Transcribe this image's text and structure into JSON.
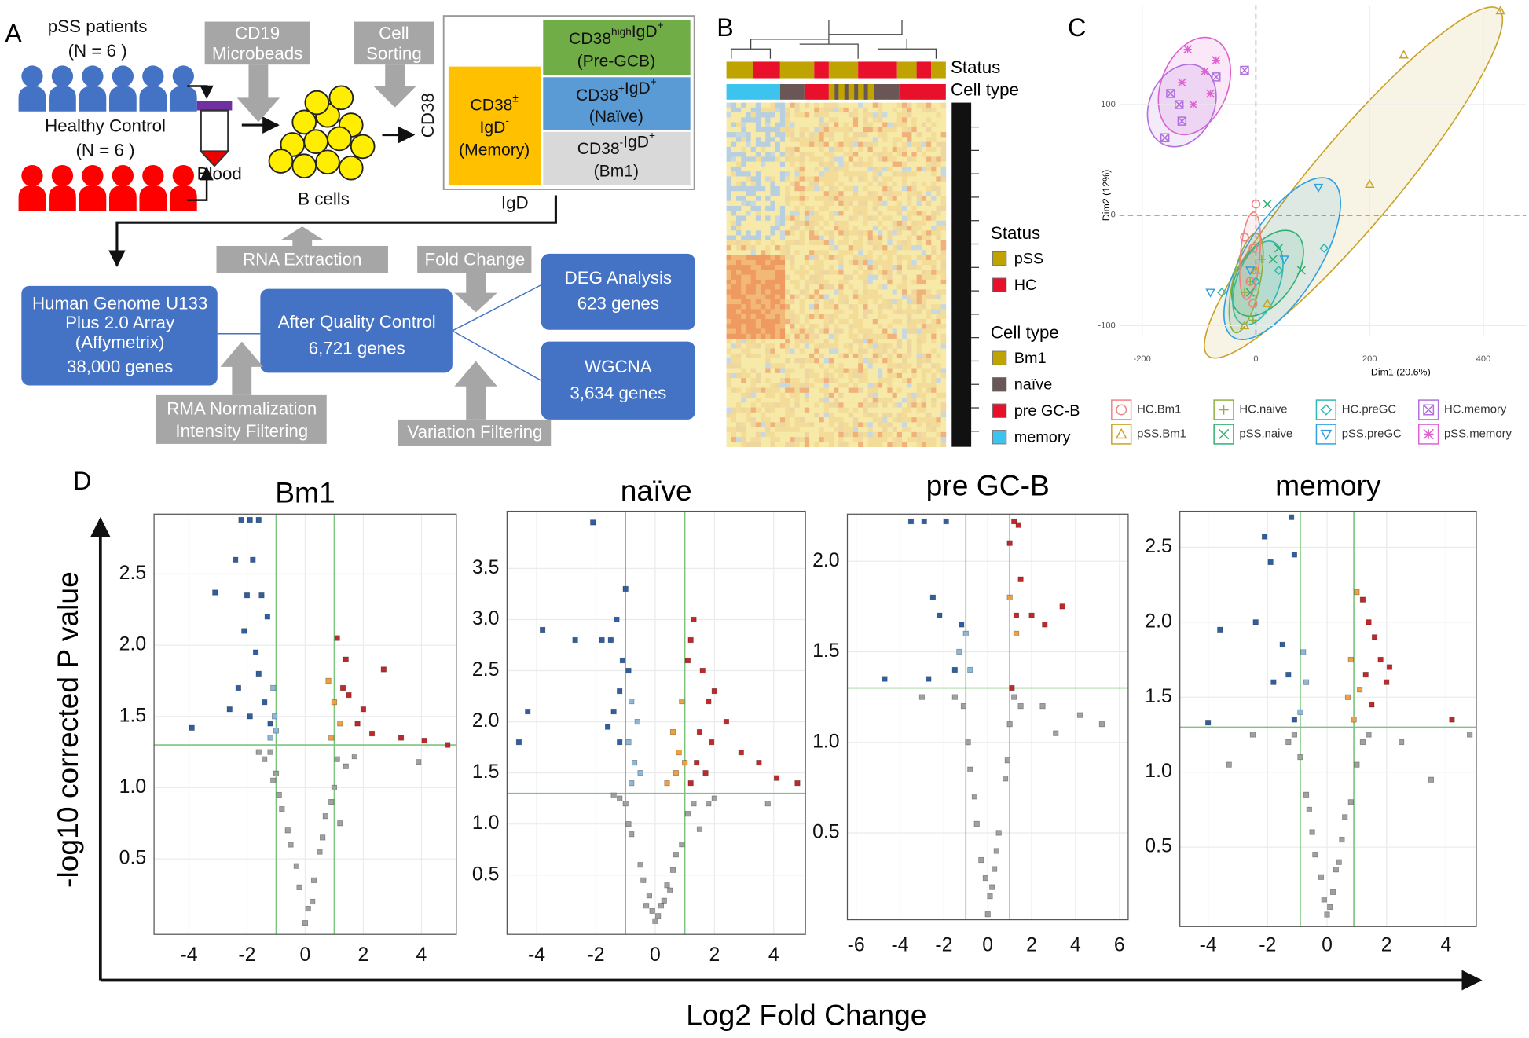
{
  "panels": [
    "A",
    "B",
    "C",
    "D"
  ],
  "diagram": {
    "pss": [
      "pSS patients",
      "(N = 6 )"
    ],
    "hc": [
      "Healthy Control",
      "(N = 6 )"
    ],
    "blood": "Blood",
    "microbeads": [
      "CD19",
      "Microbeads"
    ],
    "sorting": [
      "Cell",
      "Sorting"
    ],
    "b_cells": "B cells",
    "y_axis": "CD38",
    "x_axis": "IgD",
    "gates": [
      {
        "color": "#ffc000",
        "lines": [
          [
            {
              "text": "CD38",
              "sup": "±"
            }
          ],
          [
            {
              "text": "IgD",
              "sup": "-"
            }
          ],
          [
            {
              "text": "(Memory)"
            }
          ]
        ]
      },
      {
        "color": "#70ad47",
        "lines": [
          [
            {
              "text": "CD38",
              "sup": "high"
            },
            {
              "text": "IgD",
              "sup": "+"
            }
          ],
          [
            {
              "text": "(Pre-GCB)"
            }
          ]
        ]
      },
      {
        "color": "#5b9bd5",
        "lines": [
          [
            {
              "text": "CD38",
              "sup": "+"
            },
            {
              "text": "IgD",
              "sup": "+"
            }
          ],
          [
            {
              "text": "(Naïve)"
            }
          ]
        ]
      },
      {
        "color": "#d9d9d9",
        "lines": [
          [
            {
              "text": "CD38",
              "sup": "-"
            },
            {
              "text": "IgD",
              "sup": "+"
            }
          ],
          [
            {
              "text": "(Bm1)"
            }
          ]
        ]
      }
    ],
    "rna": "RNA Extraction",
    "fold": "Fold Change",
    "array": [
      "Human Genome U133",
      "Plus 2.0 Array",
      "(Affymetrix)",
      "38,000 genes"
    ],
    "qc": [
      "After Quality Control",
      "6,721 genes"
    ],
    "deg": [
      "DEG Analysis",
      "623 genes"
    ],
    "wgcna": [
      "WGCNA",
      "3,634 genes"
    ],
    "rma": [
      "RMA Normalization",
      "Intensity Filtering"
    ],
    "variation": "Variation Filtering"
  },
  "heatmap": {
    "status_label": "Status",
    "cell_type_label": "Cell type",
    "legend": [
      {
        "title": "Status",
        "items": [
          {
            "name": "pSS",
            "color": "#bfa300"
          },
          {
            "name": "HC",
            "color": "#e8102a"
          }
        ]
      },
      {
        "title": "Cell type",
        "items": [
          {
            "name": "Bm1",
            "color": "#bfa300"
          },
          {
            "name": "naïve",
            "color": "#6b5656"
          },
          {
            "name": "pre GC-B",
            "color": "#e8102a"
          },
          {
            "name": "memory",
            "color": "#3cc4ee"
          }
        ]
      }
    ]
  },
  "volcano_axes": {
    "ylabel": "-log10 corrected P value",
    "xlabel": "Log2 Fold Change"
  },
  "chart_data": [
    {
      "type": "scatter",
      "xlabel": "Dim1 (20.6%)",
      "ylabel": "Dim2 (12%)",
      "xlim": [
        -240,
        475
      ],
      "ylim": [
        -110,
        190
      ],
      "xticks": [
        -200,
        0,
        200,
        400
      ],
      "yticks": [
        -100,
        0,
        100
      ],
      "grid": true,
      "zero_lines": true,
      "series": [
        {
          "name": "HC.Bm1",
          "color": "#f08080",
          "shape": "circle",
          "x": [
            -5,
            -10,
            0,
            -20,
            -5
          ],
          "values": [
            -30,
            -60,
            10,
            -20,
            -80
          ]
        },
        {
          "name": "pSS.Bm1",
          "color": "#c9a227",
          "shape": "triangle",
          "x": [
            260,
            430,
            200,
            -20,
            20,
            0
          ],
          "values": [
            145,
            185,
            28,
            -100,
            -80,
            -50
          ]
        },
        {
          "name": "HC.naive",
          "color": "#8db040",
          "shape": "plus",
          "x": [
            -5,
            -20,
            10,
            -10
          ],
          "values": [
            -95,
            -70,
            -40,
            -60
          ]
        },
        {
          "name": "pSS.naive",
          "color": "#30b070",
          "shape": "cross",
          "x": [
            80,
            30,
            40,
            -10,
            20
          ],
          "values": [
            -50,
            -40,
            -30,
            -70,
            10
          ]
        },
        {
          "name": "HC.preGC",
          "color": "#2fb8b0",
          "shape": "diamond",
          "x": [
            120,
            -60,
            40,
            0
          ],
          "values": [
            -30,
            -70,
            -50,
            -60
          ]
        },
        {
          "name": "pSS.preGC",
          "color": "#2f9fe0",
          "shape": "triangle-down",
          "x": [
            -80,
            110,
            50,
            -10
          ],
          "values": [
            -70,
            25,
            -40,
            -50
          ]
        },
        {
          "name": "HC.memory",
          "color": "#b070e0",
          "shape": "boxed-cross",
          "x": [
            -20,
            -150,
            -130,
            -160,
            -135,
            -70
          ],
          "values": [
            131,
            110,
            85,
            70,
            100,
            125
          ]
        },
        {
          "name": "pSS.memory",
          "color": "#e060d0",
          "shape": "asterisk",
          "x": [
            -120,
            -90,
            -70,
            -130,
            -110,
            -80
          ],
          "values": [
            150,
            130,
            140,
            120,
            100,
            110
          ]
        }
      ]
    },
    {
      "type": "scatter",
      "title": "Bm1",
      "frame": true,
      "grid": true,
      "vlines": [
        -1,
        1
      ],
      "hline": 1.3,
      "xlim": [
        -5.2,
        5.2
      ],
      "ylim": [
        -0.03,
        2.92
      ],
      "xticks": [
        -4,
        -2,
        0,
        2,
        4
      ],
      "yticks": [
        0.5,
        {
          "value": 1,
          "label": "1.0"
        },
        1.5,
        {
          "value": 2,
          "label": "2.0"
        },
        2.5
      ],
      "series": [
        {
          "color": "#a0a0a0",
          "shape": "square",
          "x": [
            0.0,
            0.1,
            -0.2,
            0.3,
            -0.5,
            0.5,
            -0.8,
            0.7,
            -1.0,
            1.0,
            -1.2,
            1.1,
            -0.6,
            0.6,
            -1.4,
            1.4,
            -0.9,
            0.9,
            -1.6,
            1.7,
            -0.3,
            0.25,
            -1.1,
            1.2,
            3.9
          ],
          "values": [
            0.05,
            0.15,
            0.3,
            0.35,
            0.6,
            0.55,
            0.85,
            0.8,
            1.1,
            1.0,
            1.25,
            1.2,
            0.7,
            0.65,
            1.2,
            1.15,
            0.95,
            0.9,
            1.25,
            1.22,
            0.45,
            0.2,
            1.05,
            0.75,
            1.18
          ]
        },
        {
          "color": "#2f5f9f",
          "shape": "square",
          "x": [
            -2.2,
            -1.9,
            -1.6,
            -2.4,
            -1.8,
            -1.5,
            -2.0,
            -1.3,
            -2.1,
            -1.7,
            -3.1,
            -3.9,
            -1.6,
            -2.3,
            -1.4,
            -1.9,
            -1.2,
            -2.6
          ],
          "values": [
            2.88,
            2.88,
            2.88,
            2.6,
            2.6,
            2.35,
            2.35,
            2.2,
            2.1,
            1.95,
            2.37,
            1.42,
            1.8,
            1.7,
            1.6,
            1.5,
            1.45,
            1.55
          ]
        },
        {
          "color": "#8cb8d8",
          "shape": "square",
          "x": [
            -1.1,
            -1.05,
            -1.2,
            -1.0
          ],
          "values": [
            1.7,
            1.5,
            1.35,
            1.4
          ]
        },
        {
          "color": "#f0a040",
          "shape": "square",
          "x": [
            0.8,
            1.0,
            1.2,
            0.9
          ],
          "values": [
            1.75,
            1.6,
            1.45,
            1.35
          ]
        },
        {
          "color": "#c0282a",
          "shape": "square",
          "x": [
            1.1,
            1.3,
            1.5,
            2.0,
            2.7,
            1.8,
            2.3,
            3.3,
            4.1,
            4.9,
            1.4
          ],
          "values": [
            2.05,
            1.7,
            1.65,
            1.55,
            1.83,
            1.45,
            1.38,
            1.35,
            1.33,
            1.3,
            1.9
          ]
        }
      ]
    },
    {
      "type": "scatter",
      "title": "naïve",
      "frame": true,
      "grid": true,
      "vlines": [
        -1,
        1
      ],
      "hline": 1.3,
      "xlim": [
        -5,
        5.07
      ],
      "ylim": [
        -0.08,
        4.06
      ],
      "xticks": [
        -4,
        -2,
        0,
        2,
        4
      ],
      "yticks": [
        0.5,
        {
          "value": 1,
          "label": "1.0"
        },
        1.5,
        {
          "value": 2,
          "label": "2.0"
        },
        2.5,
        {
          "value": 3,
          "label": "3.0"
        },
        3.5
      ],
      "series": [
        {
          "color": "#a0a0a0",
          "shape": "square",
          "x": [
            0.0,
            0.2,
            -0.2,
            0.4,
            -0.5,
            0.6,
            -0.8,
            0.9,
            -1.0,
            1.1,
            -0.4,
            0.5,
            -0.9,
            0.7,
            -1.2,
            1.3,
            0.1,
            -0.1,
            0.3,
            -0.3,
            1.8,
            2.0,
            -1.4,
            1.5,
            3.8
          ],
          "values": [
            0.05,
            0.2,
            0.3,
            0.4,
            0.6,
            0.55,
            0.9,
            0.8,
            1.2,
            1.1,
            0.45,
            0.35,
            1.0,
            0.7,
            1.25,
            1.2,
            0.1,
            0.15,
            0.25,
            0.2,
            1.2,
            1.25,
            1.28,
            0.95,
            1.2
          ]
        },
        {
          "color": "#2f5f9f",
          "shape": "square",
          "x": [
            -2.1,
            -1.0,
            -1.3,
            -1.5,
            -1.1,
            -3.8,
            -2.7,
            -1.8,
            -4.3,
            -4.6,
            -1.2,
            -1.4,
            -0.9,
            -1.6,
            -1.2
          ],
          "values": [
            3.95,
            3.3,
            3.0,
            2.8,
            2.6,
            2.9,
            2.8,
            2.8,
            2.1,
            1.8,
            2.3,
            2.1,
            2.5,
            1.95,
            1.8
          ]
        },
        {
          "color": "#8cb8d8",
          "shape": "square",
          "x": [
            -0.8,
            -0.6,
            -0.9,
            -0.7,
            -0.5,
            -0.8
          ],
          "values": [
            2.2,
            2.0,
            1.8,
            1.6,
            1.5,
            1.4
          ]
        },
        {
          "color": "#f0a040",
          "shape": "square",
          "x": [
            0.9,
            0.6,
            0.8,
            0.4,
            1.0,
            0.7
          ],
          "values": [
            2.2,
            1.9,
            1.7,
            1.4,
            1.6,
            1.5
          ]
        },
        {
          "color": "#c0282a",
          "shape": "square",
          "x": [
            1.3,
            1.2,
            1.6,
            1.8,
            2.0,
            1.1,
            1.5,
            2.4,
            2.9,
            3.5,
            4.1,
            4.8,
            1.9,
            1.4,
            1.7,
            1.2
          ],
          "values": [
            3.0,
            2.8,
            2.5,
            2.2,
            2.3,
            2.6,
            1.9,
            2.0,
            1.7,
            1.6,
            1.45,
            1.4,
            1.8,
            1.6,
            1.5,
            1.4
          ]
        }
      ]
    },
    {
      "type": "scatter",
      "title": "pre GC-B",
      "frame": true,
      "grid": true,
      "vlines": [
        -1,
        1
      ],
      "hline": 1.3,
      "xlim": [
        -6.4,
        6.4
      ],
      "ylim": [
        0.02,
        2.26
      ],
      "xticks": [
        -6,
        -4,
        -2,
        0,
        2,
        4,
        6
      ],
      "yticks": [
        0.5,
        {
          "value": 1,
          "label": "1.0"
        },
        1.5,
        {
          "value": 2,
          "label": "2.0"
        }
      ],
      "series": [
        {
          "color": "#a0a0a0",
          "shape": "square",
          "x": [
            0.0,
            0.2,
            -0.3,
            0.5,
            -0.6,
            0.8,
            -0.9,
            1.0,
            -1.1,
            1.2,
            0.1,
            -0.1,
            0.4,
            -0.5,
            1.5,
            -1.5,
            2.5,
            3.1,
            4.2,
            5.2,
            -3.0,
            0.9,
            -0.8,
            0.3
          ],
          "values": [
            0.05,
            0.2,
            0.35,
            0.5,
            0.7,
            0.8,
            1.0,
            1.1,
            1.2,
            1.25,
            0.15,
            0.25,
            0.4,
            0.55,
            1.2,
            1.25,
            1.2,
            1.05,
            1.15,
            1.1,
            1.25,
            0.9,
            0.85,
            0.3
          ]
        },
        {
          "color": "#2f5f9f",
          "shape": "square",
          "x": [
            -3.5,
            -2.9,
            -1.9,
            -2.2,
            -2.7,
            -4.7,
            -1.5,
            -1.2,
            -2.5
          ],
          "values": [
            2.22,
            2.22,
            2.22,
            1.7,
            1.35,
            1.35,
            1.4,
            1.65,
            1.8
          ]
        },
        {
          "color": "#8cb8d8",
          "shape": "square",
          "x": [
            -1.0,
            -0.8,
            -1.3
          ],
          "values": [
            1.6,
            1.4,
            1.5
          ]
        },
        {
          "color": "#f0a040",
          "shape": "square",
          "x": [
            1.0,
            1.3
          ],
          "values": [
            1.8,
            1.6
          ]
        },
        {
          "color": "#c0282a",
          "shape": "square",
          "x": [
            1.2,
            1.4,
            1.0,
            1.5,
            1.3,
            2.0,
            2.6,
            3.4,
            1.1
          ],
          "values": [
            2.22,
            2.2,
            2.1,
            1.9,
            1.7,
            1.7,
            1.65,
            1.75,
            1.3
          ]
        }
      ]
    },
    {
      "type": "scatter",
      "title": "memory",
      "frame": true,
      "grid": true,
      "vlines": [
        -0.9,
        0.9
      ],
      "hline": 1.3,
      "xlim": [
        -4.95,
        5.02
      ],
      "ylim": [
        -0.03,
        2.74
      ],
      "xticks": [
        -4,
        -2,
        0,
        2,
        4
      ],
      "yticks": [
        0.5,
        {
          "value": 1,
          "label": "1.0"
        },
        1.5,
        {
          "value": 2,
          "label": "2.0"
        },
        2.5
      ],
      "series": [
        {
          "color": "#a0a0a0",
          "shape": "square",
          "x": [
            0.0,
            0.1,
            -0.2,
            0.3,
            -0.5,
            0.5,
            -0.7,
            0.8,
            -0.9,
            1.0,
            -1.1,
            1.2,
            -0.4,
            0.4,
            -1.3,
            1.4,
            -0.1,
            0.2,
            2.5,
            3.5,
            -2.5,
            -3.3,
            0.6,
            -0.6,
            4.8
          ],
          "values": [
            0.05,
            0.1,
            0.3,
            0.35,
            0.6,
            0.55,
            0.85,
            0.8,
            1.1,
            1.05,
            1.25,
            1.2,
            0.45,
            0.4,
            1.2,
            1.25,
            0.15,
            0.2,
            1.2,
            0.95,
            1.25,
            1.05,
            0.7,
            0.75,
            1.25
          ]
        },
        {
          "color": "#2f5f9f",
          "shape": "square",
          "x": [
            -2.1,
            -1.2,
            -1.1,
            -1.9,
            -2.4,
            -3.6,
            -1.5,
            -1.3,
            -1.8,
            -4.0,
            -1.1
          ],
          "values": [
            2.57,
            2.7,
            2.45,
            2.4,
            2.0,
            1.95,
            1.85,
            1.65,
            1.6,
            1.33,
            1.35
          ]
        },
        {
          "color": "#8cb8d8",
          "shape": "square",
          "x": [
            -0.8,
            -0.7,
            -0.9
          ],
          "values": [
            1.8,
            1.6,
            1.4
          ]
        },
        {
          "color": "#f0a040",
          "shape": "square",
          "x": [
            1.0,
            0.8,
            1.1,
            0.7,
            0.9
          ],
          "values": [
            2.2,
            1.75,
            1.55,
            1.5,
            1.35
          ]
        },
        {
          "color": "#c0282a",
          "shape": "square",
          "x": [
            1.2,
            1.4,
            1.6,
            1.8,
            1.3,
            2.0,
            2.1,
            1.5,
            4.2
          ],
          "values": [
            2.15,
            2.0,
            1.9,
            1.75,
            1.65,
            1.6,
            1.7,
            1.45,
            1.35
          ]
        }
      ]
    }
  ]
}
